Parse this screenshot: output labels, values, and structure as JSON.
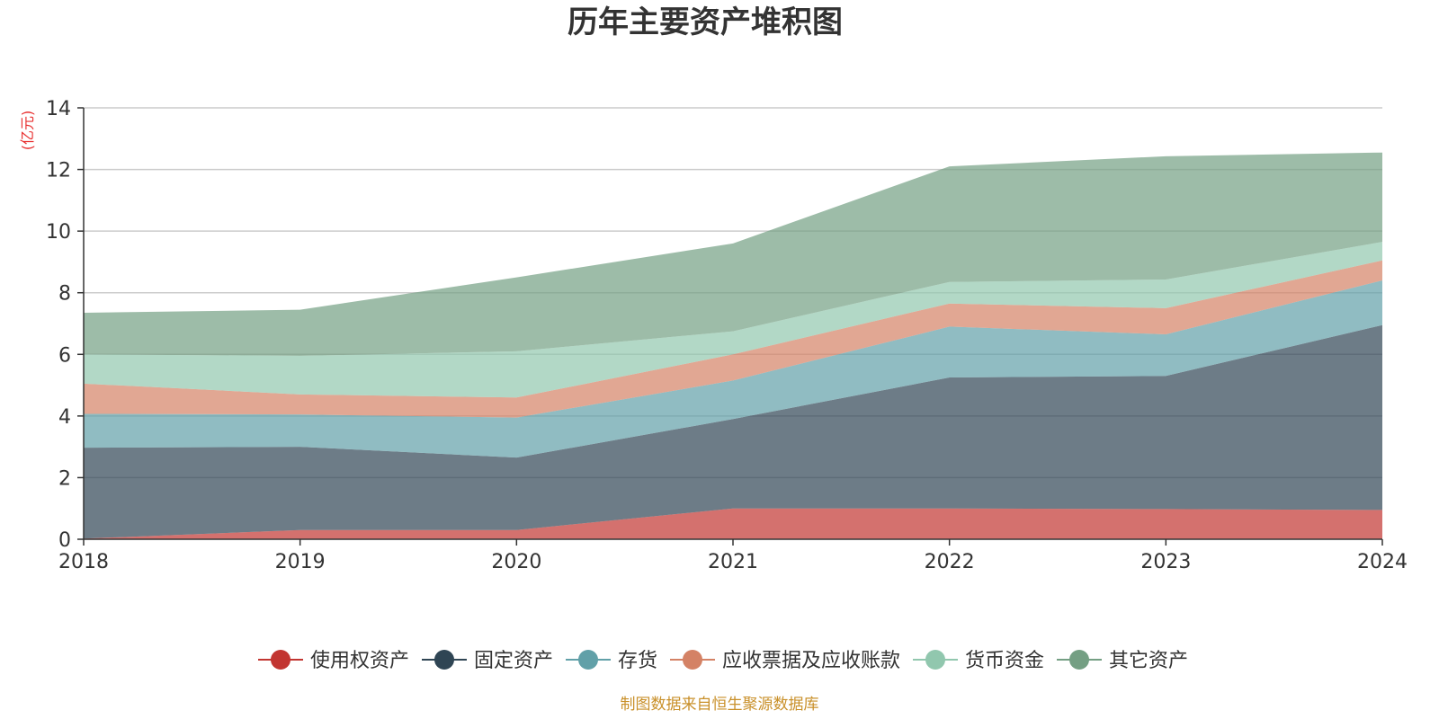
{
  "chart_data": {
    "type": "area",
    "title": "历年主要资产堆积图",
    "unit_label": "(亿元)",
    "x": [
      "2018",
      "2019",
      "2020",
      "2021",
      "2022",
      "2023",
      "2024"
    ],
    "ylim": [
      0,
      14
    ],
    "y_ticks": [
      "0",
      "2",
      "4",
      "6",
      "8",
      "10",
      "12",
      "14"
    ],
    "stacked": true,
    "grid": true,
    "legend_position": "bottom",
    "series": [
      {
        "name": "使用权资产",
        "color": "#c23531",
        "values": [
          0.02,
          0.3,
          0.3,
          1.0,
          1.0,
          0.98,
          0.95
        ]
      },
      {
        "name": "固定资产",
        "color": "#2f4554",
        "values": [
          2.95,
          2.7,
          2.35,
          2.9,
          4.25,
          4.32,
          6.0
        ]
      },
      {
        "name": "存货",
        "color": "#61a0a8",
        "values": [
          1.1,
          1.05,
          1.3,
          1.25,
          1.65,
          1.35,
          1.45
        ]
      },
      {
        "name": "应收票据及应收账款",
        "color": "#d48265",
        "values": [
          0.98,
          0.65,
          0.65,
          0.85,
          0.75,
          0.85,
          0.65
        ]
      },
      {
        "name": "货币资金",
        "color": "#91c7ae",
        "values": [
          0.95,
          1.25,
          1.5,
          0.75,
          0.7,
          0.93,
          0.6
        ]
      },
      {
        "name": "其它资产",
        "color": "#749f83",
        "values": [
          1.35,
          1.5,
          2.4,
          2.85,
          3.75,
          4.0,
          2.9
        ]
      }
    ],
    "source": "制图数据来自恒生聚源数据库"
  }
}
